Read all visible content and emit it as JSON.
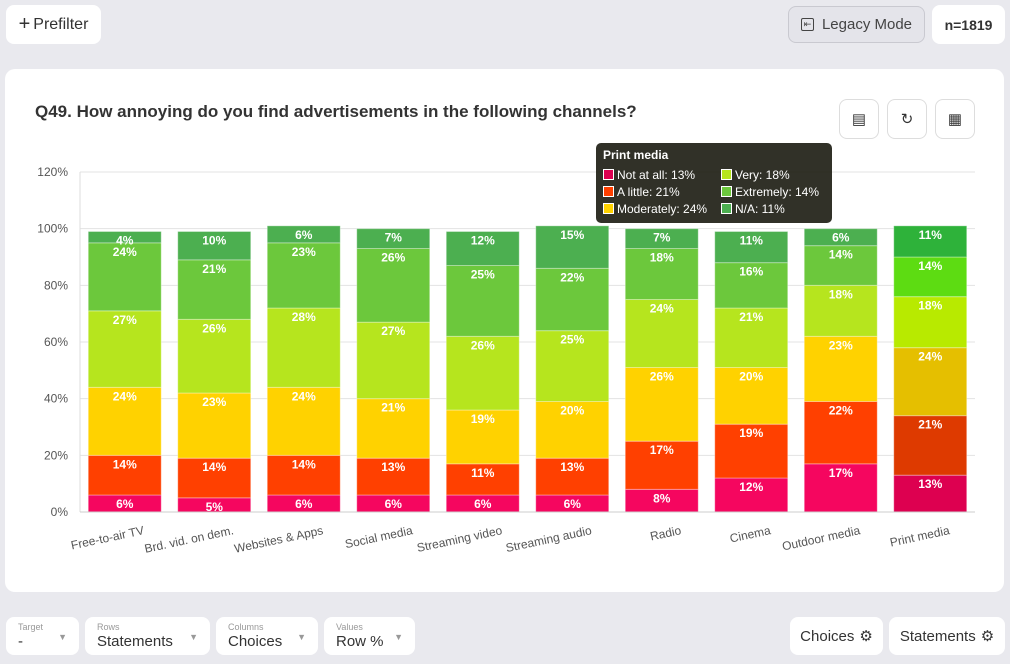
{
  "header": {
    "prefilter_label": "Prefilter",
    "legacy_label": "Legacy Mode",
    "n_label": "n=1819"
  },
  "card": {
    "title": "Q49. How annoying do you find advertisements in the following channels?"
  },
  "footer": {
    "target_label": "Target",
    "target_value": "-",
    "rows_label": "Rows",
    "rows_value": "Statements",
    "columns_label": "Columns",
    "columns_value": "Choices",
    "values_label": "Values",
    "values_value": "Row %",
    "choices_btn": "Choices",
    "statements_btn": "Statements"
  },
  "tooltip": {
    "title": "Print media",
    "rows": [
      "Not at all: 13%",
      "A little: 21%",
      "Moderately: 24%",
      "Very: 18%",
      "Extremely: 14%",
      "N/A: 11%"
    ]
  },
  "chart_data": {
    "type": "bar",
    "stacked": true,
    "title": "Q49. How annoying do you find advertisements in the following channels?",
    "categories": [
      "Free-to-air TV",
      "Brd. vid. on dem.",
      "Websites & Apps",
      "Social media",
      "Streaming video",
      "Streaming audio",
      "Radio",
      "Cinema",
      "Outdoor media",
      "Print media"
    ],
    "ylim": [
      0,
      120
    ],
    "yticks": [
      "0%",
      "20%",
      "40%",
      "60%",
      "80%",
      "100%",
      "120%"
    ],
    "highlighted": "Print media",
    "series": [
      {
        "name": "Not at all",
        "color": "#f5065f",
        "hover_color": "#dd0050",
        "values": [
          6,
          5,
          6,
          6,
          6,
          6,
          8,
          12,
          17,
          13
        ]
      },
      {
        "name": "A little",
        "color": "#ff4000",
        "hover_color": "#de3a00",
        "values": [
          14,
          14,
          14,
          13,
          11,
          13,
          17,
          19,
          22,
          21
        ]
      },
      {
        "name": "Moderately",
        "color": "#ffd200",
        "hover_color": "#e5bf00",
        "values": [
          24,
          23,
          24,
          21,
          19,
          20,
          26,
          20,
          23,
          24
        ]
      },
      {
        "name": "Very",
        "color": "#b6e51e",
        "hover_color": "#b8ea00",
        "values": [
          27,
          26,
          28,
          27,
          26,
          25,
          24,
          21,
          18,
          18
        ]
      },
      {
        "name": "Extremely",
        "color": "#6cc83c",
        "hover_color": "#5ddc12",
        "values": [
          24,
          21,
          23,
          26,
          25,
          22,
          18,
          16,
          14,
          14
        ]
      },
      {
        "name": "N/A",
        "color": "#4caf50",
        "hover_color": "#2eb23a",
        "values": [
          4,
          10,
          6,
          7,
          12,
          15,
          7,
          11,
          6,
          11
        ]
      }
    ]
  }
}
